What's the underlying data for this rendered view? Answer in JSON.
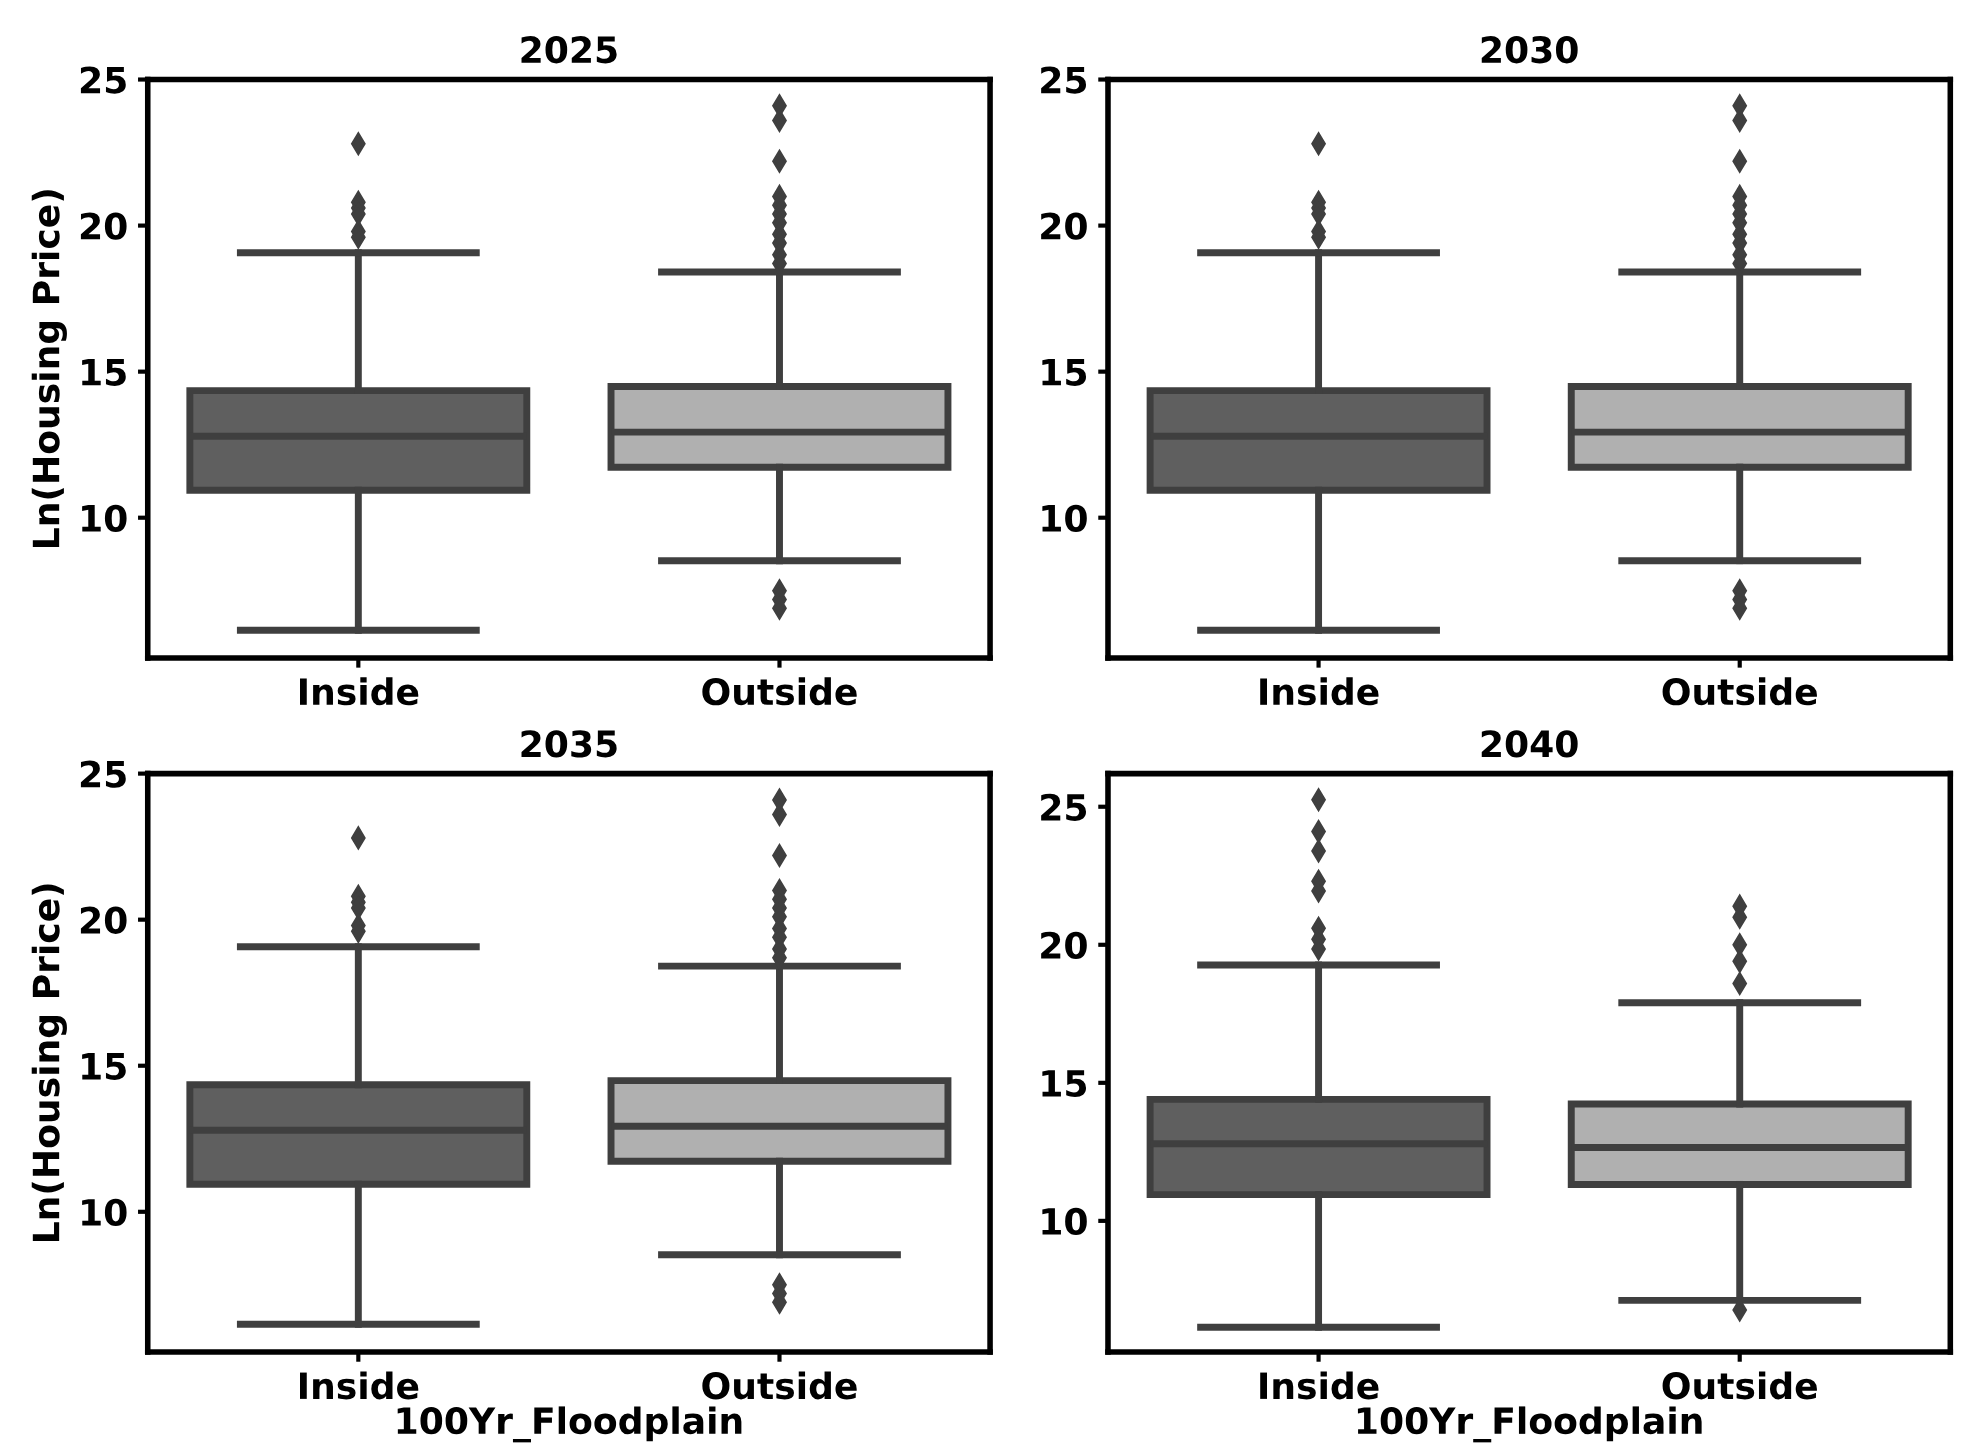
{
  "chart_data": [
    {
      "type": "box",
      "title": "2025",
      "ylabel": "Ln(Housing Price)",
      "categories": [
        "Inside",
        "Outside"
      ],
      "colors": [
        "#5f5f5f",
        "#b0b0b0"
      ],
      "ylim": [
        5.2,
        25
      ],
      "yticks": [
        10,
        15,
        20,
        25
      ],
      "boxes": [
        {
          "low": 6.15,
          "q1": 10.94,
          "median": 12.79,
          "q3": 14.35,
          "high": 19.07,
          "outliers": [
            22.8,
            20.8,
            20.6,
            20.4,
            19.8,
            19.6
          ]
        },
        {
          "low": 8.53,
          "q1": 11.73,
          "median": 12.93,
          "q3": 14.49,
          "high": 18.41,
          "outliers": [
            24.1,
            23.6,
            22.2,
            21.0,
            20.7,
            20.4,
            20.1,
            19.7,
            19.4,
            19.0,
            18.7,
            7.5,
            7.2,
            6.9
          ]
        }
      ]
    },
    {
      "type": "box",
      "title": "2030",
      "categories": [
        "Inside",
        "Outside"
      ],
      "colors": [
        "#5f5f5f",
        "#b0b0b0"
      ],
      "ylim": [
        5.2,
        25
      ],
      "yticks": [
        10,
        15,
        20,
        25
      ],
      "boxes": [
        {
          "low": 6.15,
          "q1": 10.94,
          "median": 12.79,
          "q3": 14.35,
          "high": 19.07,
          "outliers": [
            22.8,
            20.8,
            20.6,
            20.4,
            19.8,
            19.6
          ]
        },
        {
          "low": 8.53,
          "q1": 11.73,
          "median": 12.93,
          "q3": 14.49,
          "high": 18.41,
          "outliers": [
            24.1,
            23.6,
            22.2,
            21.0,
            20.7,
            20.4,
            20.1,
            19.7,
            19.4,
            19.0,
            18.7,
            7.5,
            7.2,
            6.9
          ]
        }
      ]
    },
    {
      "type": "box",
      "title": "2035",
      "ylabel": "Ln(Housing Price)",
      "xlabel": "100Yr_Floodplain",
      "categories": [
        "Inside",
        "Outside"
      ],
      "colors": [
        "#5f5f5f",
        "#b0b0b0"
      ],
      "ylim": [
        5.2,
        25
      ],
      "yticks": [
        10,
        15,
        20,
        25
      ],
      "boxes": [
        {
          "low": 6.15,
          "q1": 10.94,
          "median": 12.79,
          "q3": 14.35,
          "high": 19.07,
          "outliers": [
            22.8,
            20.8,
            20.6,
            20.4,
            19.8,
            19.6
          ]
        },
        {
          "low": 8.53,
          "q1": 11.73,
          "median": 12.93,
          "q3": 14.49,
          "high": 18.41,
          "outliers": [
            24.1,
            23.6,
            22.2,
            21.0,
            20.7,
            20.4,
            20.1,
            19.7,
            19.4,
            19.0,
            18.7,
            7.5,
            7.2,
            6.9
          ]
        }
      ]
    },
    {
      "type": "box",
      "title": "2040",
      "xlabel": "100Yr_Floodplain",
      "categories": [
        "Inside",
        "Outside"
      ],
      "colors": [
        "#5f5f5f",
        "#b0b0b0"
      ],
      "ylim": [
        5.25,
        26.2
      ],
      "yticks": [
        10,
        15,
        20,
        25
      ],
      "boxes": [
        {
          "low": 6.15,
          "q1": 10.95,
          "median": 12.79,
          "q3": 14.4,
          "high": 19.27,
          "outliers": [
            25.25,
            24.1,
            23.4,
            22.3,
            21.95,
            20.6,
            20.2,
            19.85
          ]
        },
        {
          "low": 7.12,
          "q1": 11.32,
          "median": 12.66,
          "q3": 14.23,
          "high": 17.9,
          "outliers": [
            21.4,
            21.0,
            20.0,
            19.4,
            18.6,
            6.77
          ]
        }
      ]
    }
  ]
}
